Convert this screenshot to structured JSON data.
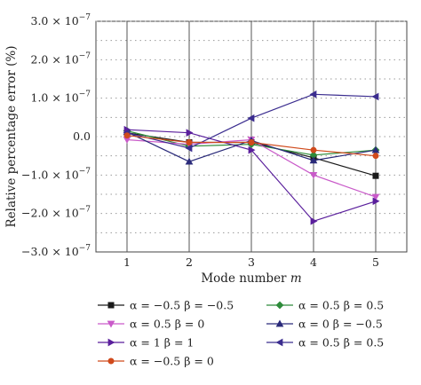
{
  "chart_data": {
    "type": "line",
    "xlabel": "Mode number",
    "xlabel_var": "m",
    "ylabel": "Relative percentage error (%)",
    "x": [
      1,
      2,
      3,
      4,
      5
    ],
    "xlim": [
      0.5,
      5.5
    ],
    "ylim": [
      -3e-07,
      3e-07
    ],
    "x_ticks": [
      "1",
      "2",
      "3",
      "4",
      "5"
    ],
    "y_ticks": [
      {
        "value": 3e-07,
        "mant": "3.0",
        "exp": "−7"
      },
      {
        "value": 2e-07,
        "mant": "2.0",
        "exp": "−7"
      },
      {
        "value": 1e-07,
        "mant": "1.0",
        "exp": "−7"
      },
      {
        "value": 0,
        "mant": "0.0",
        "exp": ""
      },
      {
        "value": -1e-07,
        "mant": "−1.0",
        "exp": "−7"
      },
      {
        "value": -2e-07,
        "mant": "−2.0",
        "exp": "−7"
      },
      {
        "value": -3e-07,
        "mant": "−3.0",
        "exp": "−7"
      }
    ],
    "grid": {
      "horizontal_dotted": true,
      "vertical_solid": true
    },
    "legend_position": "bottom",
    "series": [
      {
        "name": "α = −0.5 β = −0.5",
        "color": "#1a1a1a",
        "marker": "square",
        "values": [
          1e-08,
          -1.5e-08,
          -1.5e-08,
          -5.5e-08,
          -1.02e-07
        ]
      },
      {
        "name": "α = 0.5 β = 0.5",
        "color": "#2e8b3a",
        "marker": "diamond",
        "values": [
          1.5e-08,
          -2.5e-08,
          -2e-08,
          -4.8e-08,
          -3.5e-08
        ]
      },
      {
        "name": "α = 0.5 β = 0",
        "color": "#c95ac9",
        "marker": "triangle-down",
        "values": [
          -8e-09,
          -2e-08,
          -8e-09,
          -1e-07,
          -1.57e-07
        ]
      },
      {
        "name": "α = 0 β = −0.5",
        "color": "#2a2a7a",
        "marker": "triangle-up",
        "values": [
          1.2e-08,
          -6.5e-08,
          -1e-08,
          -6.2e-08,
          -3.5e-08
        ]
      },
      {
        "name": "α = 1 β = 1",
        "color": "#5a1f9c",
        "marker": "triangle-right",
        "values": [
          1.8e-08,
          1e-08,
          -3.5e-08,
          -2.2e-07,
          -1.68e-07
        ]
      },
      {
        "name": "α = 0.5 β = 0.5",
        "color": "#3b2d8f",
        "marker": "triangle-left",
        "values": [
          1e-08,
          -3e-08,
          4.8e-08,
          1.1e-07,
          1.04e-07
        ]
      },
      {
        "name": "α = −0.5 β = 0",
        "color": "#d04a1c",
        "marker": "circle",
        "values": [
          3e-09,
          -1.5e-08,
          -1.5e-08,
          -3.5e-08,
          -5e-08
        ]
      }
    ]
  }
}
